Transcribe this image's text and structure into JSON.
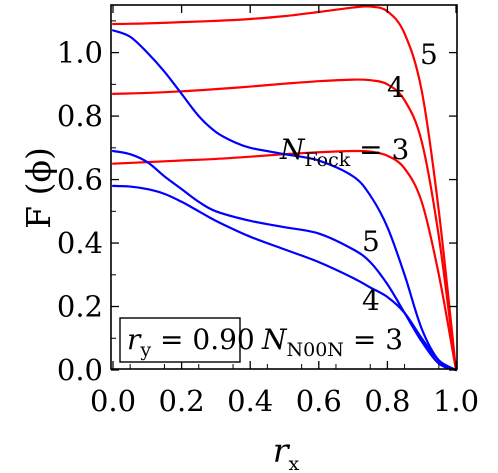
{
  "chart_data": {
    "type": "line",
    "xlabel": {
      "base": "r",
      "sub": "x"
    },
    "ylabel": "F (ϕ)",
    "xlim": [
      0,
      1
    ],
    "ylim": [
      0,
      1.15
    ],
    "x_ticks": [
      "0.0",
      "0.2",
      "0.4",
      "0.6",
      "0.8",
      "1.0"
    ],
    "y_ticks": [
      "0.0",
      "0.2",
      "0.4",
      "0.6",
      "0.8",
      "1.0"
    ],
    "colors": {
      "fock": "#ff0000",
      "noon": "#0000ff"
    },
    "annotations": {
      "fock_label": {
        "base": "N",
        "sub": "Fock",
        "rest": " = 3"
      },
      "noon_label": {
        "base": "N",
        "sub": "N00N",
        "rest": " = 3"
      },
      "ry_box": {
        "base": "r",
        "sub": "y",
        "rest": " = 0.90"
      },
      "fock_4": "4",
      "fock_5": "5",
      "noon_4": "4",
      "noon_5": "5"
    },
    "series": [
      {
        "group": "fock",
        "n": 3,
        "x": [
          0,
          0.1,
          0.2,
          0.3,
          0.4,
          0.5,
          0.6,
          0.7,
          0.75,
          0.8,
          0.85,
          0.9,
          0.95,
          1.0
        ],
        "y": [
          0.65,
          0.655,
          0.66,
          0.665,
          0.672,
          0.68,
          0.686,
          0.69,
          0.688,
          0.675,
          0.635,
          0.53,
          0.3,
          0.0
        ]
      },
      {
        "group": "fock",
        "n": 4,
        "x": [
          0,
          0.1,
          0.2,
          0.3,
          0.4,
          0.5,
          0.6,
          0.7,
          0.75,
          0.8,
          0.85,
          0.9,
          0.95,
          1.0
        ],
        "y": [
          0.87,
          0.873,
          0.878,
          0.885,
          0.893,
          0.902,
          0.91,
          0.915,
          0.913,
          0.9,
          0.85,
          0.72,
          0.42,
          0.0
        ]
      },
      {
        "group": "fock",
        "n": 5,
        "x": [
          0,
          0.1,
          0.2,
          0.3,
          0.4,
          0.5,
          0.6,
          0.7,
          0.75,
          0.8,
          0.85,
          0.9,
          0.95,
          1.0
        ],
        "y": [
          1.09,
          1.092,
          1.096,
          1.1,
          1.106,
          1.115,
          1.128,
          1.142,
          1.145,
          1.13,
          1.06,
          0.88,
          0.5,
          0.0
        ]
      },
      {
        "group": "noon",
        "n": 3,
        "x": [
          0,
          0.05,
          0.1,
          0.15,
          0.2,
          0.25,
          0.3,
          0.4,
          0.5,
          0.6,
          0.7,
          0.75,
          0.8,
          0.85,
          0.9,
          0.95,
          1.0
        ],
        "y": [
          0.58,
          0.578,
          0.57,
          0.555,
          0.53,
          0.5,
          0.47,
          0.42,
          0.38,
          0.34,
          0.29,
          0.26,
          0.23,
          0.18,
          0.1,
          0.03,
          0.0
        ]
      },
      {
        "group": "noon",
        "n": 4,
        "x": [
          0,
          0.05,
          0.1,
          0.15,
          0.2,
          0.25,
          0.3,
          0.4,
          0.5,
          0.6,
          0.7,
          0.75,
          0.8,
          0.85,
          0.9,
          0.95,
          1.0
        ],
        "y": [
          0.69,
          0.68,
          0.655,
          0.61,
          0.57,
          0.53,
          0.5,
          0.47,
          0.45,
          0.43,
          0.38,
          0.34,
          0.27,
          0.18,
          0.09,
          0.02,
          0.0
        ]
      },
      {
        "group": "noon",
        "n": 5,
        "x": [
          0,
          0.05,
          0.1,
          0.15,
          0.2,
          0.25,
          0.3,
          0.35,
          0.4,
          0.5,
          0.6,
          0.7,
          0.75,
          0.8,
          0.85,
          0.9,
          0.95,
          1.0
        ],
        "y": [
          1.07,
          1.05,
          1.0,
          0.94,
          0.87,
          0.8,
          0.75,
          0.72,
          0.7,
          0.68,
          0.66,
          0.61,
          0.55,
          0.45,
          0.3,
          0.13,
          0.03,
          0.0
        ]
      }
    ]
  }
}
